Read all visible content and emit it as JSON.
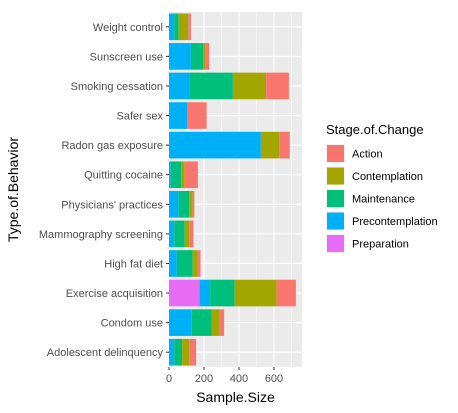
{
  "chart_data": {
    "type": "bar",
    "orientation": "horizontal",
    "stacked": true,
    "title": "",
    "xlabel": "Sample.Size",
    "ylabel": "Type.of.Behavior",
    "xlim": [
      0,
      760
    ],
    "x_ticks": [
      0,
      200,
      400,
      600
    ],
    "x_tick_labels": [
      "0",
      "200",
      "400",
      "600"
    ],
    "grid": true,
    "legend": {
      "title": "Stage.of.Change",
      "position": "right"
    },
    "categories": [
      "Weight control",
      "Sunscreen use",
      "Smoking cessation",
      "Safer sex",
      "Radon gas exposure",
      "Quitting cocaine",
      "Physicians' practices",
      "Mammography screening",
      "High fat diet",
      "Exercise acquisition",
      "Condom use",
      "Adolescent delinquency"
    ],
    "stack_order": [
      "Preparation",
      "Precontemplation",
      "Maintenance",
      "Contemplation",
      "Action"
    ],
    "series": [
      {
        "name": "Action",
        "color": "#F8766D",
        "values": [
          15,
          20,
          130,
          110,
          60,
          75,
          10,
          25,
          20,
          110,
          25,
          40
        ]
      },
      {
        "name": "Contemplation",
        "color": "#A3A500",
        "values": [
          55,
          15,
          190,
          0,
          105,
          20,
          20,
          25,
          25,
          240,
          45,
          40
        ]
      },
      {
        "name": "Maintenance",
        "color": "#00BF7D",
        "values": [
          25,
          70,
          250,
          0,
          0,
          60,
          60,
          60,
          90,
          140,
          115,
          45
        ]
      },
      {
        "name": "Precontemplation",
        "color": "#00B0F6",
        "values": [
          30,
          125,
          115,
          105,
          525,
          10,
          55,
          30,
          45,
          60,
          130,
          30
        ]
      },
      {
        "name": "Preparation",
        "color": "#E76BF3",
        "values": [
          0,
          0,
          0,
          0,
          0,
          0,
          0,
          0,
          0,
          175,
          0,
          0
        ]
      }
    ]
  }
}
